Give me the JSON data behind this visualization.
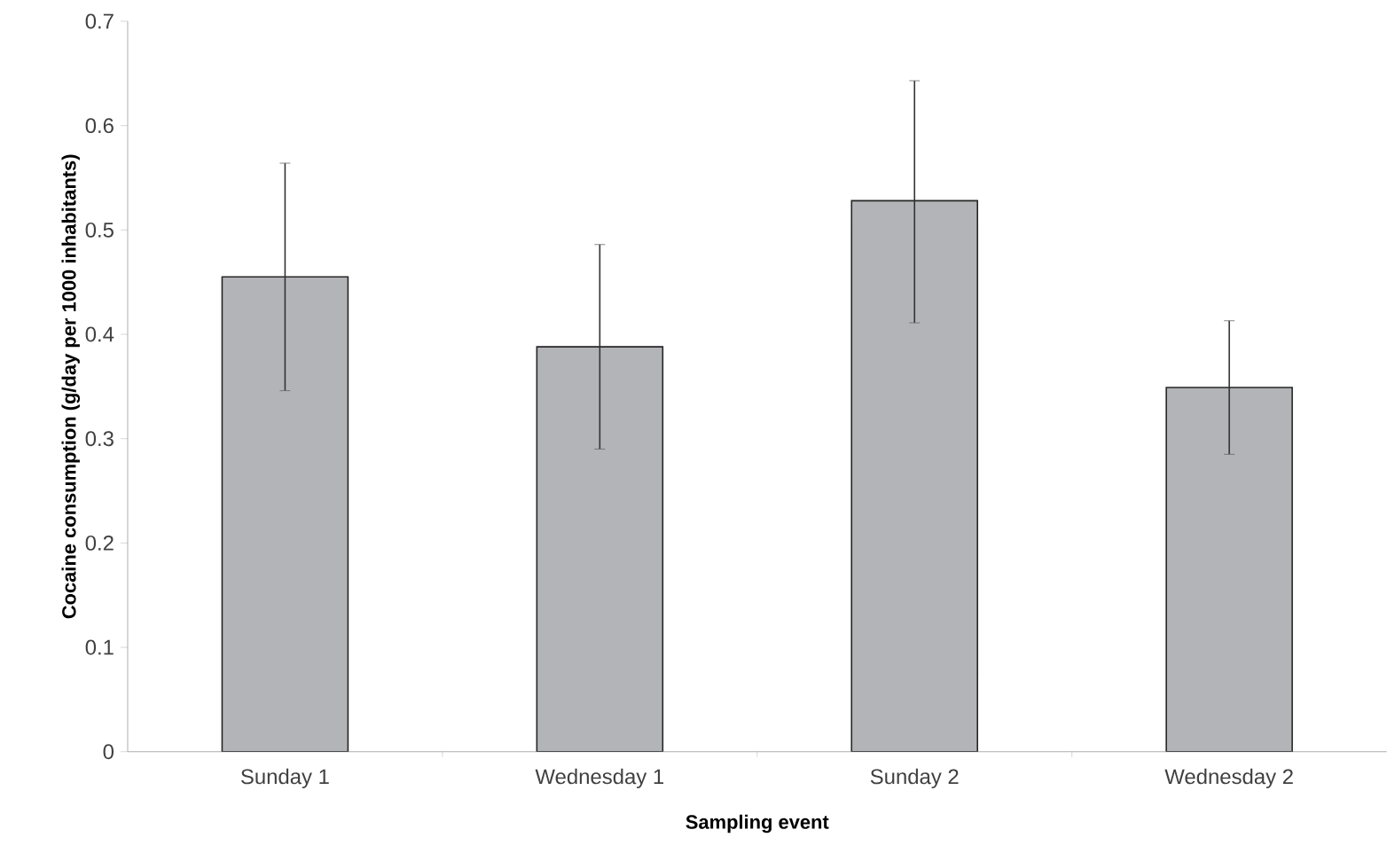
{
  "chart_data": {
    "type": "bar",
    "xlabel": "Sampling event",
    "ylabel": "Cocaine consumption (g/day per 1000 inhabitants)",
    "categories": [
      "Sunday 1",
      "Wednesday 1",
      "Sunday 2",
      "Wednesday 2"
    ],
    "values": [
      0.455,
      0.388,
      0.528,
      0.349
    ],
    "errors": [
      [
        0.346,
        0.564
      ],
      [
        0.29,
        0.486
      ],
      [
        0.411,
        0.643
      ],
      [
        0.285,
        0.413
      ]
    ],
    "color": "#b3b4b7",
    "ylim": [
      0,
      0.7
    ],
    "yticks": [
      {
        "value": 0,
        "label": "0"
      },
      0.1,
      0.2,
      0.3,
      0.4,
      0.5,
      0.6,
      0.7
    ],
    "grid": false
  }
}
